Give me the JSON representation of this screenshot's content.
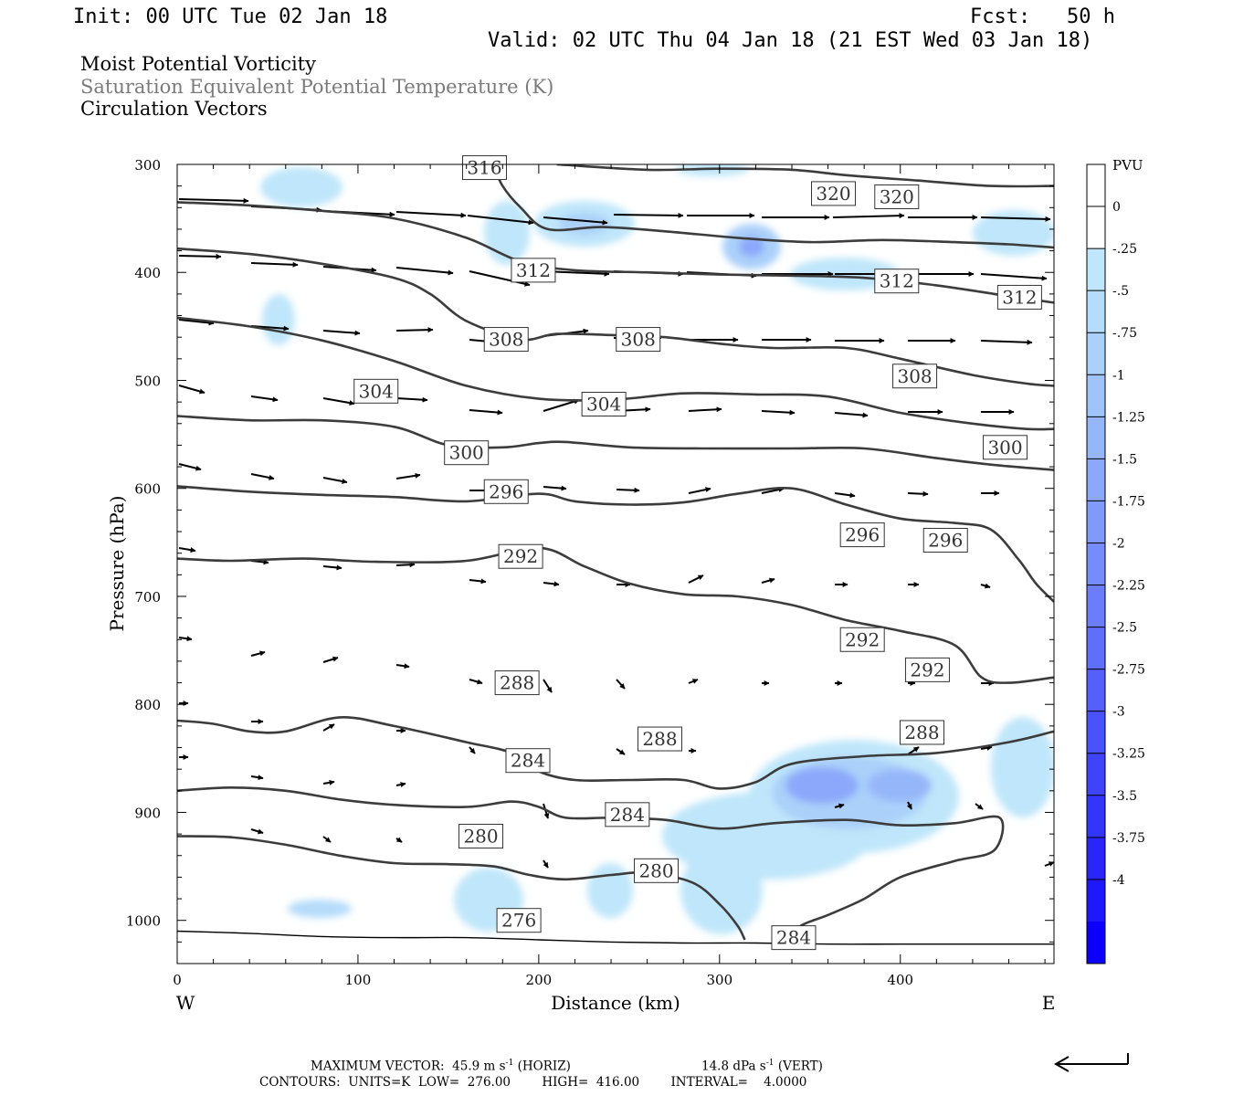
{
  "header": {
    "init": "Init: 00 UTC Tue 02 Jan 18",
    "fcst": "Fcst:   50 h",
    "valid": "Valid: 02 UTC Thu 04 Jan 18 (21 EST Wed 03 Jan 18)"
  },
  "fields": [
    "Moist Potential Vorticity",
    "Saturation Equivalent Potential Temperature (K)",
    "Circulation Vectors"
  ],
  "footer": {
    "maxvec_label": "MAXIMUM VECTOR:",
    "maxvec_horiz": "45.9 m s",
    "horiz_exp": "-1",
    "horiz_tag": "(HORIZ)",
    "maxvec_vert": "14.8 dPa s",
    "vert_exp": "-1",
    "vert_tag": "(VERT)",
    "contours": "CONTOURS:  UNITS=K  LOW=  276.00        HIGH=  416.00        INTERVAL=    4.0000"
  },
  "chart_data": {
    "type": "cross-section",
    "xlabel": "Distance (km)",
    "ylabel": "Pressure (hPa)",
    "xlim": [
      0,
      485
    ],
    "ylim": [
      1040,
      300
    ],
    "x_ticks": [
      0,
      100,
      200,
      300,
      400
    ],
    "y_ticks": [
      300,
      400,
      500,
      600,
      700,
      800,
      900,
      1000
    ],
    "x_end_labels": {
      "left": "W",
      "right": "E"
    },
    "colorbar": {
      "unit": "PVU",
      "levels": [
        "0",
        "-.25",
        "-.5",
        "-.75",
        "-1",
        "-1.25",
        "-1.5",
        "-1.75",
        "-2",
        "-2.25",
        "-2.5",
        "-2.75",
        "-3",
        "-3.25",
        "-3.5",
        "-3.75",
        "-4"
      ],
      "colors": [
        "#ffffff",
        "#ffffff",
        "#bfe6fa",
        "#b5dcfa",
        "#abd0fa",
        "#a0c3fa",
        "#96b6fa",
        "#8ba8fa",
        "#809afa",
        "#768cfa",
        "#6b7dfa",
        "#606ffa",
        "#5560fa",
        "#4a52fa",
        "#3f43fa",
        "#3435fa",
        "#2a26fa",
        "#1f18fa",
        "#0c00fa"
      ]
    },
    "contour_labels": [
      "316",
      "320",
      "320",
      "312",
      "312",
      "312",
      "308",
      "308",
      "308",
      "304",
      "304",
      "300",
      "300",
      "296",
      "296",
      "296",
      "292",
      "292",
      "292",
      "288",
      "288",
      "288",
      "284",
      "284",
      "284",
      "280",
      "280",
      "276"
    ],
    "contours": [
      {
        "value": 276,
        "points": [
          [
            0,
            1010
          ],
          [
            40,
            1012
          ],
          [
            80,
            1015
          ],
          [
            120,
            1016
          ],
          [
            160,
            1016
          ],
          [
            200,
            1018
          ],
          [
            240,
            1020
          ],
          [
            280,
            1021
          ],
          [
            320,
            1021
          ],
          [
            360,
            1022
          ],
          [
            400,
            1022
          ],
          [
            440,
            1022
          ],
          [
            485,
            1022
          ]
        ]
      },
      {
        "value": 280,
        "points": [
          [
            0,
            922
          ],
          [
            30,
            923
          ],
          [
            60,
            930
          ],
          [
            90,
            940
          ],
          [
            120,
            947
          ],
          [
            150,
            948
          ],
          [
            175,
            950
          ],
          [
            195,
            958
          ],
          [
            215,
            962
          ],
          [
            240,
            958
          ],
          [
            260,
            956
          ],
          [
            285,
            965
          ],
          [
            300,
            985
          ],
          [
            310,
            1005
          ],
          [
            314,
            1018
          ]
        ]
      },
      {
        "value": 284,
        "points": [
          [
            0,
            880
          ],
          [
            30,
            877
          ],
          [
            60,
            880
          ],
          [
            90,
            888
          ],
          [
            120,
            893
          ],
          [
            160,
            895
          ],
          [
            185,
            890
          ],
          [
            200,
            895
          ],
          [
            215,
            905
          ],
          [
            240,
            905
          ],
          [
            270,
            907
          ],
          [
            300,
            915
          ],
          [
            330,
            910
          ],
          [
            370,
            907
          ],
          [
            400,
            912
          ],
          [
            430,
            910
          ],
          [
            455,
            905
          ],
          [
            452,
            935
          ],
          [
            430,
            945
          ],
          [
            400,
            960
          ],
          [
            380,
            980
          ],
          [
            360,
            995
          ],
          [
            345,
            1005
          ],
          [
            340,
            1018
          ]
        ]
      },
      {
        "value": 288,
        "points": [
          [
            0,
            815
          ],
          [
            20,
            818
          ],
          [
            40,
            825
          ],
          [
            60,
            825
          ],
          [
            90,
            812
          ],
          [
            120,
            820
          ],
          [
            160,
            835
          ],
          [
            185,
            845
          ],
          [
            200,
            862
          ],
          [
            220,
            870
          ],
          [
            250,
            870
          ],
          [
            280,
            870
          ],
          [
            300,
            878
          ],
          [
            320,
            872
          ],
          [
            340,
            855
          ],
          [
            380,
            848
          ],
          [
            420,
            845
          ],
          [
            460,
            835
          ],
          [
            485,
            825
          ]
        ]
      },
      {
        "value": 292,
        "points": [
          [
            0,
            665
          ],
          [
            30,
            667
          ],
          [
            70,
            665
          ],
          [
            110,
            668
          ],
          [
            160,
            667
          ],
          [
            200,
            655
          ],
          [
            225,
            672
          ],
          [
            250,
            688
          ],
          [
            280,
            698
          ],
          [
            310,
            700
          ],
          [
            340,
            708
          ],
          [
            370,
            722
          ],
          [
            400,
            732
          ],
          [
            430,
            745
          ],
          [
            445,
            775
          ],
          [
            460,
            780
          ],
          [
            485,
            775
          ]
        ]
      },
      {
        "value": 296,
        "points": [
          [
            0,
            598
          ],
          [
            40,
            603
          ],
          [
            80,
            606
          ],
          [
            120,
            608
          ],
          [
            160,
            612
          ],
          [
            200,
            605
          ],
          [
            220,
            612
          ],
          [
            250,
            615
          ],
          [
            280,
            613
          ],
          [
            310,
            605
          ],
          [
            340,
            600
          ],
          [
            370,
            615
          ],
          [
            400,
            628
          ],
          [
            430,
            632
          ],
          [
            450,
            638
          ],
          [
            465,
            665
          ],
          [
            475,
            688
          ],
          [
            485,
            705
          ]
        ]
      },
      {
        "value": 300,
        "points": [
          [
            0,
            533
          ],
          [
            40,
            537
          ],
          [
            80,
            537
          ],
          [
            120,
            543
          ],
          [
            150,
            560
          ],
          [
            180,
            562
          ],
          [
            200,
            558
          ],
          [
            215,
            557
          ],
          [
            250,
            562
          ],
          [
            290,
            563
          ],
          [
            340,
            563
          ],
          [
            380,
            563
          ],
          [
            420,
            572
          ],
          [
            450,
            578
          ],
          [
            485,
            583
          ]
        ]
      },
      {
        "value": 304,
        "points": [
          [
            0,
            442
          ],
          [
            40,
            450
          ],
          [
            80,
            463
          ],
          [
            120,
            482
          ],
          [
            160,
            505
          ],
          [
            200,
            517
          ],
          [
            240,
            518
          ],
          [
            280,
            512
          ],
          [
            320,
            513
          ],
          [
            360,
            515
          ],
          [
            400,
            530
          ],
          [
            440,
            540
          ],
          [
            470,
            545
          ],
          [
            485,
            545
          ]
        ]
      },
      {
        "value": 308,
        "points": [
          [
            0,
            378
          ],
          [
            40,
            383
          ],
          [
            80,
            392
          ],
          [
            120,
            405
          ],
          [
            140,
            420
          ],
          [
            160,
            445
          ],
          [
            190,
            462
          ],
          [
            210,
            457
          ],
          [
            240,
            458
          ],
          [
            270,
            460
          ],
          [
            300,
            466
          ],
          [
            330,
            470
          ],
          [
            370,
            470
          ],
          [
            400,
            480
          ],
          [
            440,
            495
          ],
          [
            470,
            503
          ],
          [
            485,
            505
          ]
        ]
      },
      {
        "value": 312,
        "points": [
          [
            0,
            335
          ],
          [
            40,
            338
          ],
          [
            80,
            343
          ],
          [
            120,
            350
          ],
          [
            160,
            368
          ],
          [
            190,
            390
          ],
          [
            220,
            398
          ],
          [
            260,
            400
          ],
          [
            300,
            402
          ],
          [
            340,
            403
          ],
          [
            380,
            405
          ],
          [
            420,
            412
          ],
          [
            460,
            422
          ],
          [
            485,
            428
          ]
        ]
      },
      {
        "value": 316,
        "points": [
          [
            175,
            300
          ],
          [
            180,
            320
          ],
          [
            190,
            340
          ],
          [
            205,
            360
          ],
          [
            235,
            358
          ],
          [
            270,
            362
          ],
          [
            310,
            368
          ],
          [
            350,
            372
          ],
          [
            390,
            370
          ],
          [
            430,
            372
          ],
          [
            460,
            374
          ],
          [
            485,
            377
          ]
        ]
      },
      {
        "value": 320,
        "points": [
          [
            210,
            300
          ],
          [
            260,
            305
          ],
          [
            300,
            304
          ],
          [
            340,
            305
          ],
          [
            370,
            310
          ],
          [
            410,
            315
          ],
          [
            450,
            320
          ],
          [
            485,
            320
          ]
        ]
      }
    ]
  }
}
